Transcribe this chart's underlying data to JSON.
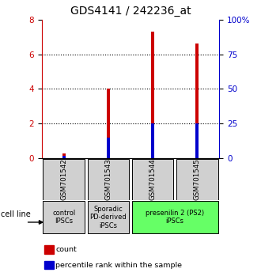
{
  "title": "GDS4141 / 242236_at",
  "categories": [
    "GSM701542",
    "GSM701543",
    "GSM701544",
    "GSM701545"
  ],
  "red_values": [
    0.28,
    4.0,
    7.3,
    6.6
  ],
  "blue_values_pct": [
    1.5,
    15.0,
    25.0,
    25.0
  ],
  "ylim_left": [
    0,
    8
  ],
  "ylim_right": [
    0,
    100
  ],
  "yticks_left": [
    0,
    2,
    4,
    6,
    8
  ],
  "yticks_right": [
    0,
    25,
    50,
    75,
    100
  ],
  "ytick_labels_right": [
    "0",
    "25",
    "50",
    "75",
    "100%"
  ],
  "red_color": "#cc0000",
  "blue_color": "#0000cc",
  "bar_width": 0.08,
  "groups": [
    {
      "label": "control\nIPSCs",
      "span": [
        0,
        1
      ],
      "color": "#d0d0d0"
    },
    {
      "label": "Sporadic\nPD-derived\niPSCs",
      "span": [
        1,
        2
      ],
      "color": "#d0d0d0"
    },
    {
      "label": "presenilin 2 (PS2)\niPSCs",
      "span": [
        2,
        4
      ],
      "color": "#66ff66"
    }
  ],
  "legend_items": [
    {
      "color": "#cc0000",
      "label": "count"
    },
    {
      "color": "#0000cc",
      "label": "percentile rank within the sample"
    }
  ],
  "cell_line_label": "cell line"
}
